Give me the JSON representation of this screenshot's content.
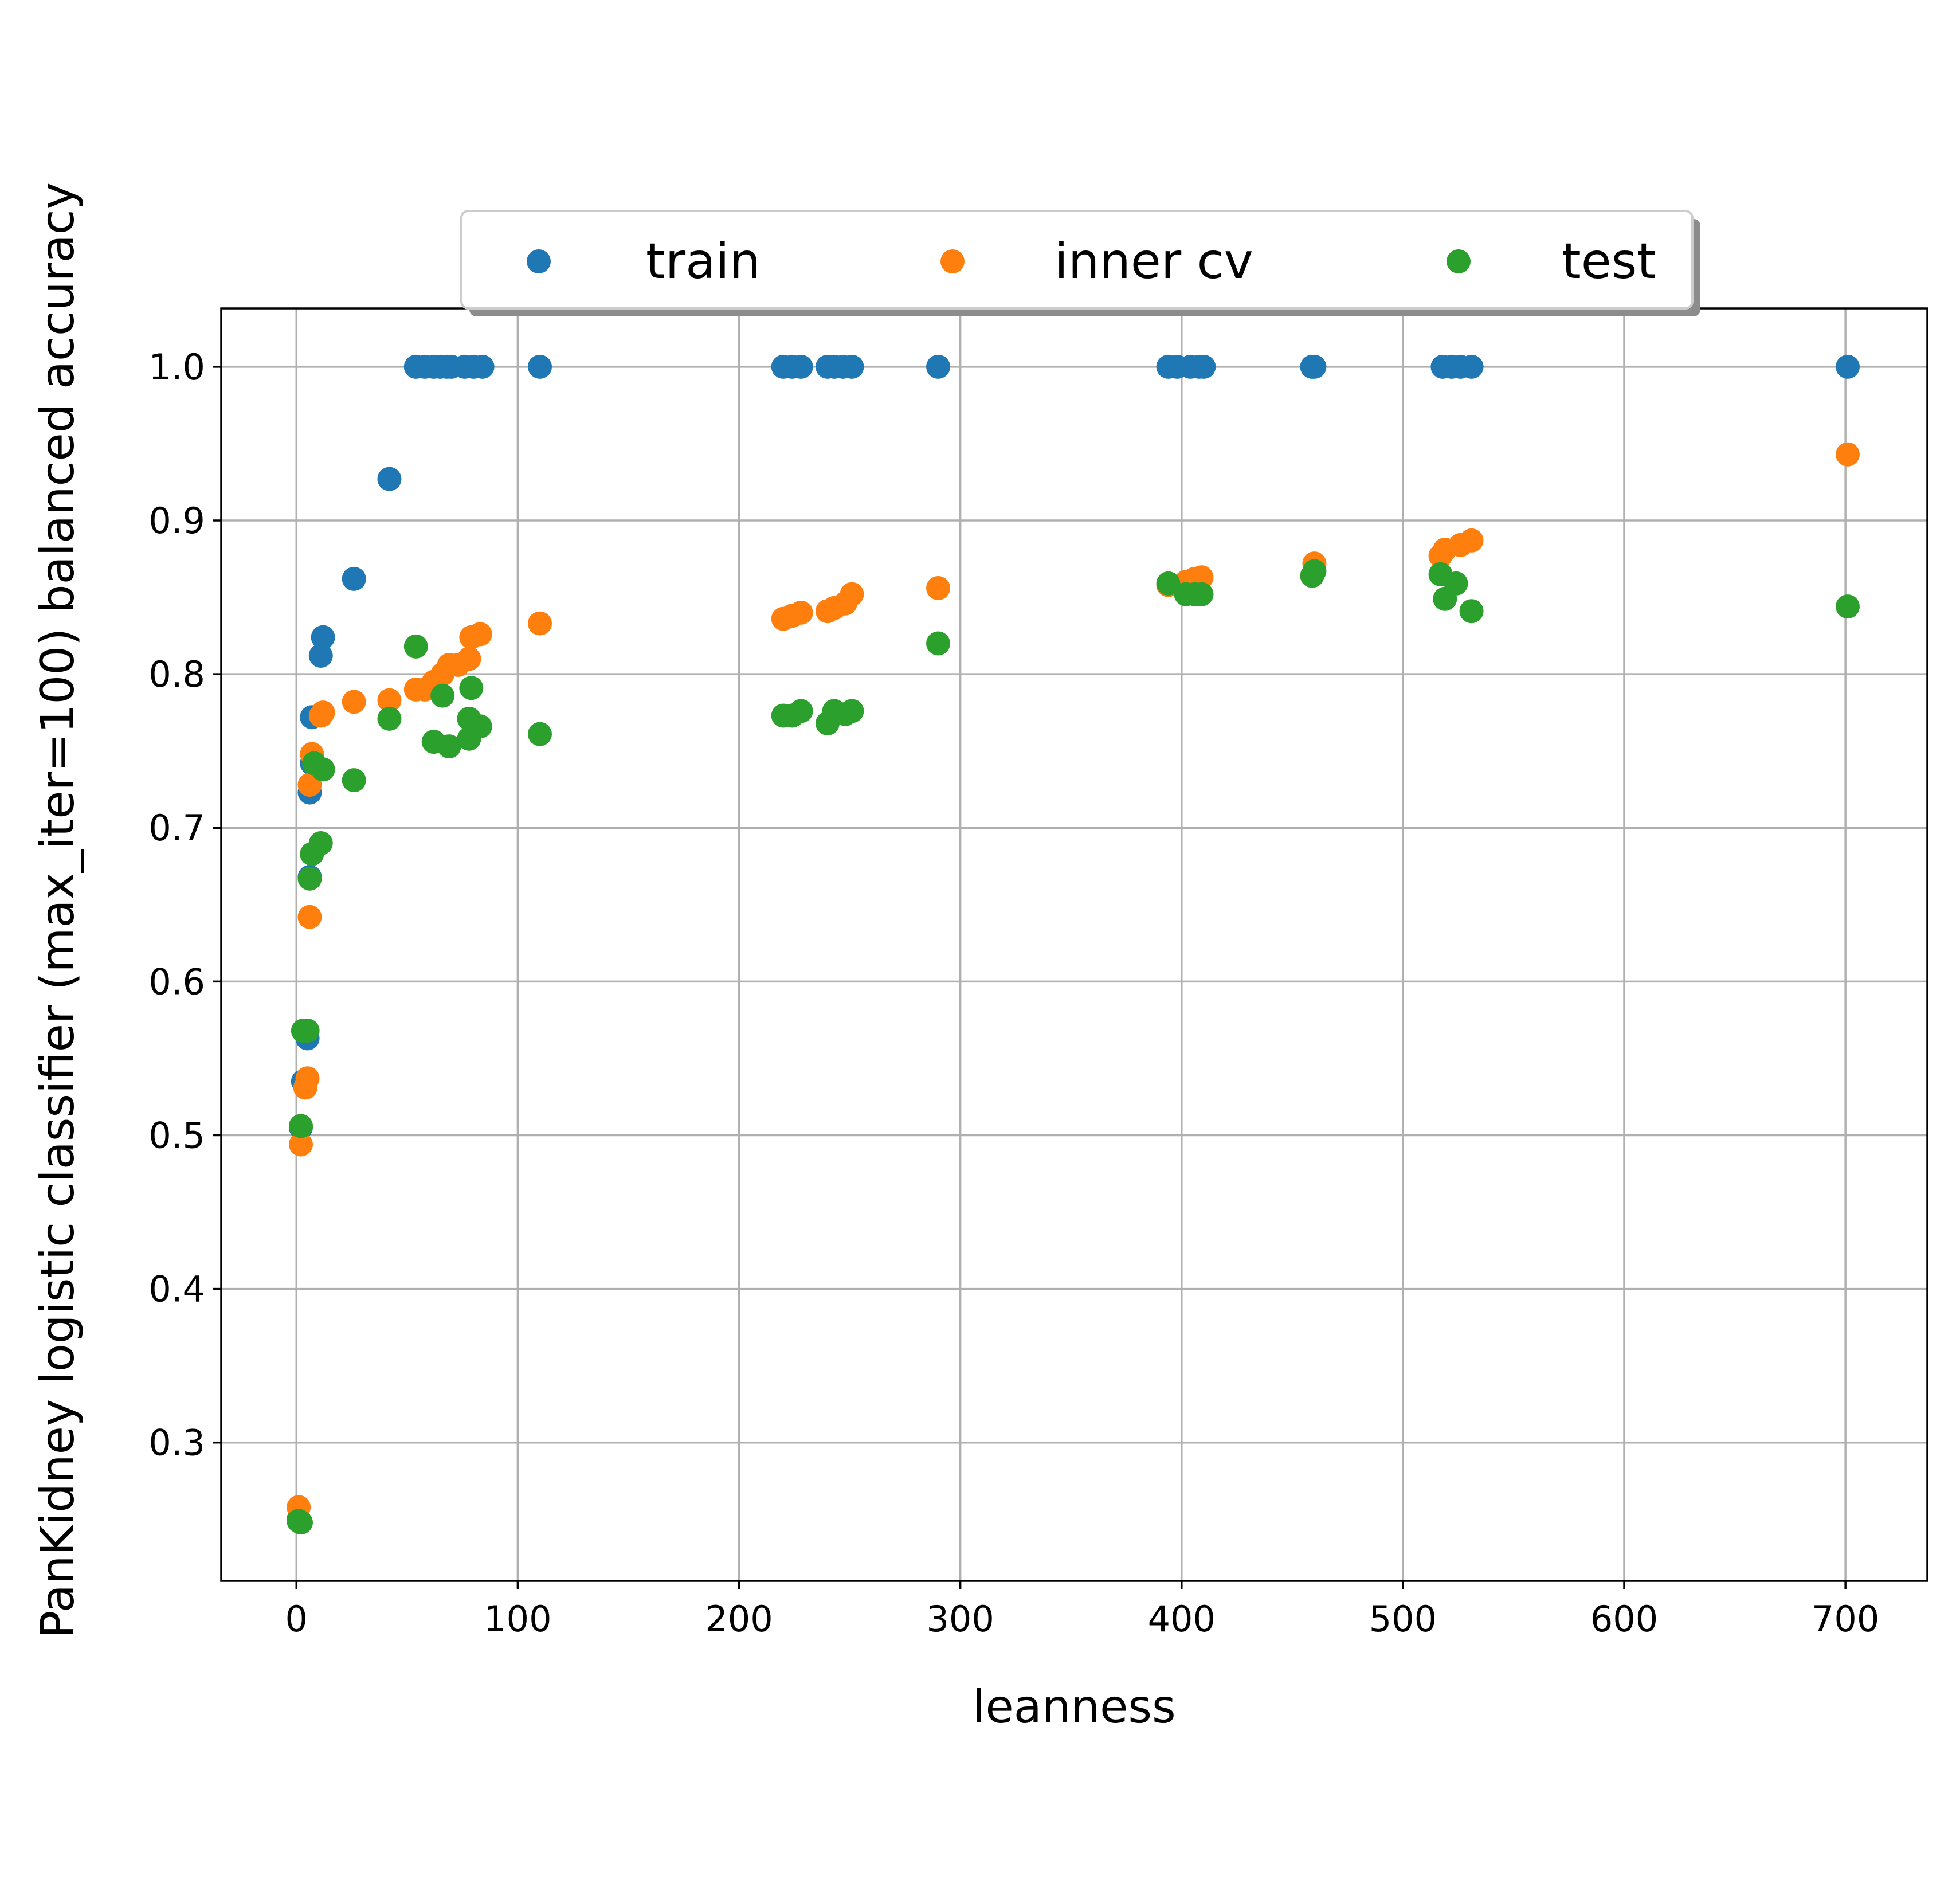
{
  "chart_data": {
    "type": "scatter",
    "xlabel": "leanness",
    "ylabel": "PanKidney logistic classifier (max_iter=100) balanced accuracy",
    "xlim": [
      -34,
      737
    ],
    "ylim": [
      0.21,
      1.038
    ],
    "xticks": [
      0,
      100,
      200,
      300,
      400,
      500,
      600,
      700
    ],
    "yticks": [
      0.3,
      0.4,
      0.5,
      0.6,
      0.7,
      0.8,
      0.9,
      1.0
    ],
    "xtick_labels": [
      "0",
      "100",
      "200",
      "300",
      "400",
      "500",
      "600",
      "700"
    ],
    "ytick_labels": [
      "0.3",
      "0.4",
      "0.5",
      "0.6",
      "0.7",
      "0.8",
      "0.9",
      "1.0"
    ],
    "grid": true,
    "legend": {
      "placement": "top-center",
      "columns": 3,
      "shadow": true
    },
    "series": [
      {
        "name": "train",
        "color": "#1f77b4",
        "points": [
          [
            1,
            0.25
          ],
          [
            2,
            0.505
          ],
          [
            3,
            0.535
          ],
          [
            5,
            0.563
          ],
          [
            5,
            0.568
          ],
          [
            6,
            0.668
          ],
          [
            6,
            0.723
          ],
          [
            7,
            0.772
          ],
          [
            7,
            0.742
          ],
          [
            11,
            0.812
          ],
          [
            12,
            0.824
          ],
          [
            26,
            0.862
          ],
          [
            42,
            0.927
          ],
          [
            54,
            1.0
          ],
          [
            58,
            1.0
          ],
          [
            62,
            1.0
          ],
          [
            65,
            1.0
          ],
          [
            68,
            1.0
          ],
          [
            70,
            1.0
          ],
          [
            76,
            1.0
          ],
          [
            80,
            1.0
          ],
          [
            84,
            1.0
          ],
          [
            110,
            1.0
          ],
          [
            220,
            1.0
          ],
          [
            224,
            1.0
          ],
          [
            228,
            1.0
          ],
          [
            240,
            1.0
          ],
          [
            243,
            1.0
          ],
          [
            247,
            1.0
          ],
          [
            251,
            1.0
          ],
          [
            290,
            1.0
          ],
          [
            394,
            1.0
          ],
          [
            398,
            1.0
          ],
          [
            404,
            1.0
          ],
          [
            408,
            1.0
          ],
          [
            410,
            1.0
          ],
          [
            459,
            1.0
          ],
          [
            460,
            1.0
          ],
          [
            518,
            1.0
          ],
          [
            522,
            1.0
          ],
          [
            526,
            1.0
          ],
          [
            531,
            1.0
          ],
          [
            701,
            1.0
          ]
        ]
      },
      {
        "name": "inner cv",
        "color": "#ff7f0e",
        "points": [
          [
            1,
            0.258
          ],
          [
            2,
            0.494
          ],
          [
            4,
            0.531
          ],
          [
            5,
            0.537
          ],
          [
            6,
            0.642
          ],
          [
            6,
            0.728
          ],
          [
            7,
            0.748
          ],
          [
            11,
            0.773
          ],
          [
            12,
            0.775
          ],
          [
            26,
            0.782
          ],
          [
            42,
            0.783
          ],
          [
            54,
            0.79
          ],
          [
            58,
            0.79
          ],
          [
            62,
            0.795
          ],
          [
            66,
            0.8
          ],
          [
            69,
            0.806
          ],
          [
            73,
            0.806
          ],
          [
            78,
            0.81
          ],
          [
            79,
            0.824
          ],
          [
            83,
            0.826
          ],
          [
            110,
            0.833
          ],
          [
            220,
            0.836
          ],
          [
            224,
            0.838
          ],
          [
            228,
            0.84
          ],
          [
            240,
            0.841
          ],
          [
            243,
            0.843
          ],
          [
            248,
            0.846
          ],
          [
            251,
            0.852
          ],
          [
            290,
            0.856
          ],
          [
            394,
            0.858
          ],
          [
            402,
            0.86
          ],
          [
            406,
            0.862
          ],
          [
            409,
            0.863
          ],
          [
            459,
            0.864
          ],
          [
            460,
            0.872
          ],
          [
            517,
            0.877
          ],
          [
            519,
            0.881
          ],
          [
            526,
            0.884
          ],
          [
            531,
            0.887
          ],
          [
            701,
            0.943
          ]
        ]
      },
      {
        "name": "test",
        "color": "#2ca02c",
        "points": [
          [
            1,
            0.249
          ],
          [
            2,
            0.248
          ],
          [
            2,
            0.506
          ],
          [
            3,
            0.568
          ],
          [
            5,
            0.568
          ],
          [
            6,
            0.667
          ],
          [
            7,
            0.683
          ],
          [
            8,
            0.742
          ],
          [
            11,
            0.69
          ],
          [
            12,
            0.738
          ],
          [
            26,
            0.731
          ],
          [
            42,
            0.771
          ],
          [
            54,
            0.818
          ],
          [
            62,
            0.756
          ],
          [
            66,
            0.786
          ],
          [
            69,
            0.753
          ],
          [
            78,
            0.758
          ],
          [
            78,
            0.771
          ],
          [
            79,
            0.791
          ],
          [
            83,
            0.766
          ],
          [
            110,
            0.761
          ],
          [
            220,
            0.773
          ],
          [
            224,
            0.773
          ],
          [
            228,
            0.776
          ],
          [
            240,
            0.768
          ],
          [
            243,
            0.776
          ],
          [
            248,
            0.774
          ],
          [
            251,
            0.776
          ],
          [
            290,
            0.82
          ],
          [
            394,
            0.859
          ],
          [
            402,
            0.852
          ],
          [
            406,
            0.852
          ],
          [
            409,
            0.852
          ],
          [
            459,
            0.864
          ],
          [
            460,
            0.867
          ],
          [
            517,
            0.865
          ],
          [
            519,
            0.849
          ],
          [
            524,
            0.859
          ],
          [
            531,
            0.841
          ],
          [
            701,
            0.844
          ]
        ]
      }
    ]
  }
}
